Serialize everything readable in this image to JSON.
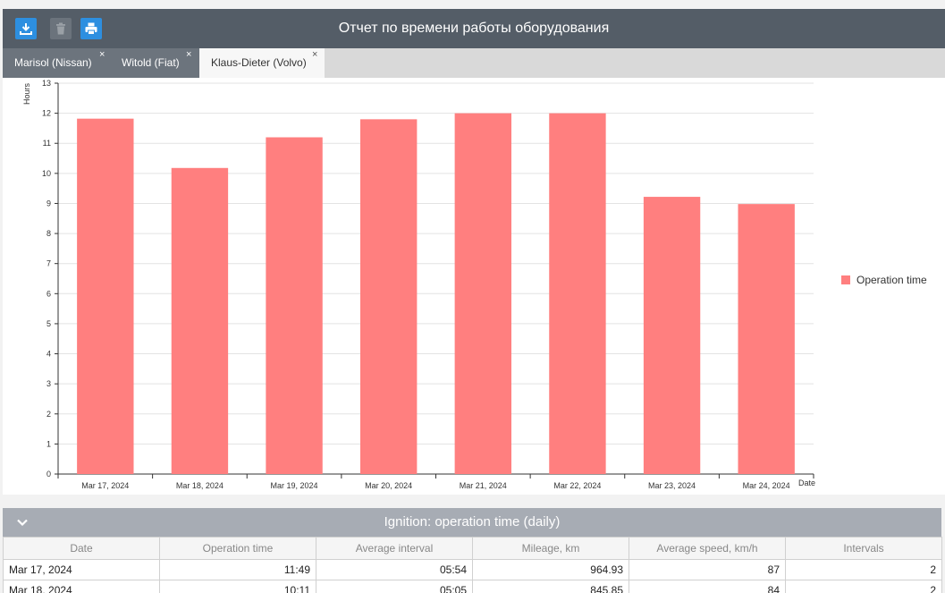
{
  "header": {
    "title": "Отчет по времени работы оборудования",
    "buttons": [
      {
        "name": "download-button",
        "icon": "download-icon"
      },
      {
        "name": "delete-button",
        "icon": "trash-icon"
      },
      {
        "name": "print-button",
        "icon": "printer-icon"
      }
    ]
  },
  "tabs": [
    {
      "label": "Marisol (Nissan)",
      "close": "×"
    },
    {
      "label": "Witold (Fiat)",
      "close": "×"
    },
    {
      "label": "Klaus-Dieter (Volvo)",
      "close": "×",
      "active": true
    }
  ],
  "chart_data": {
    "type": "bar",
    "ylabel": "Hours",
    "xlabel": "Date",
    "ylim": [
      0,
      13
    ],
    "yticks": [
      0,
      1,
      2,
      3,
      4,
      5,
      6,
      7,
      8,
      9,
      10,
      11,
      12,
      13
    ],
    "grid": true,
    "legend": "right",
    "categories": [
      "Mar 17, 2024",
      "Mar 18, 2024",
      "Mar 19, 2024",
      "Mar 20, 2024",
      "Mar 21, 2024",
      "Mar 22, 2024",
      "Mar 23, 2024",
      "Mar 24, 2024"
    ],
    "series": [
      {
        "name": "Operation time",
        "color": "#ff7f7f",
        "values": [
          11.82,
          10.18,
          11.2,
          11.8,
          12.0,
          12.0,
          9.22,
          8.98
        ]
      }
    ]
  },
  "report": {
    "title": "Ignition: operation time (daily)",
    "columns": [
      "Date",
      "Operation time",
      "Average interval",
      "Mileage, km",
      "Average speed, km/h",
      "Intervals"
    ],
    "rows": [
      [
        "Mar 17, 2024",
        "11:49",
        "05:54",
        "964.93",
        "87",
        "2"
      ],
      [
        "Mar 18, 2024",
        "10:11",
        "05:05",
        "845.85",
        "84",
        "2"
      ]
    ]
  }
}
